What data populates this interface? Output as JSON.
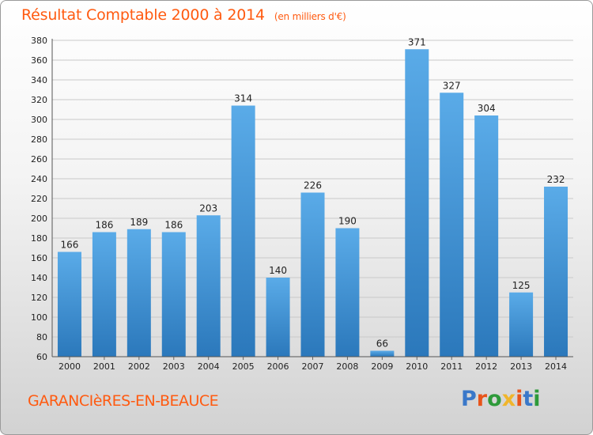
{
  "title": {
    "main": "Résultat Comptable 2000 à 2014",
    "unit": "(en milliers d'€)"
  },
  "commune": "GARANCIèRES-EN-BEAUCE",
  "logo": {
    "text": "Proxiti",
    "colors": [
      "#3a78c9",
      "#e8541a",
      "#2e9a3a",
      "#f0b52b",
      "#e8541a",
      "#3a78c9",
      "#2e9a3a"
    ]
  },
  "colors": {
    "bar_light": "#5aabe8",
    "bar_dark": "#2b78bb",
    "grid": "#c9c9c9",
    "axis_text": "#222222",
    "accent": "#ff5a10"
  },
  "chart_data": {
    "type": "bar",
    "title": "Résultat Comptable 2000 à 2014",
    "xlabel": "",
    "ylabel": "",
    "categories": [
      "2000",
      "2001",
      "2002",
      "2003",
      "2004",
      "2005",
      "2006",
      "2007",
      "2008",
      "2009",
      "2010",
      "2011",
      "2012",
      "2013",
      "2014"
    ],
    "values": [
      166,
      186,
      189,
      186,
      203,
      314,
      140,
      226,
      190,
      66,
      371,
      327,
      304,
      125,
      232
    ],
    "ylim": [
      60,
      380
    ],
    "yticks": [
      60,
      80,
      100,
      120,
      140,
      160,
      180,
      200,
      220,
      240,
      260,
      280,
      300,
      320,
      340,
      360,
      380
    ],
    "grid": true,
    "data_labels": true
  }
}
